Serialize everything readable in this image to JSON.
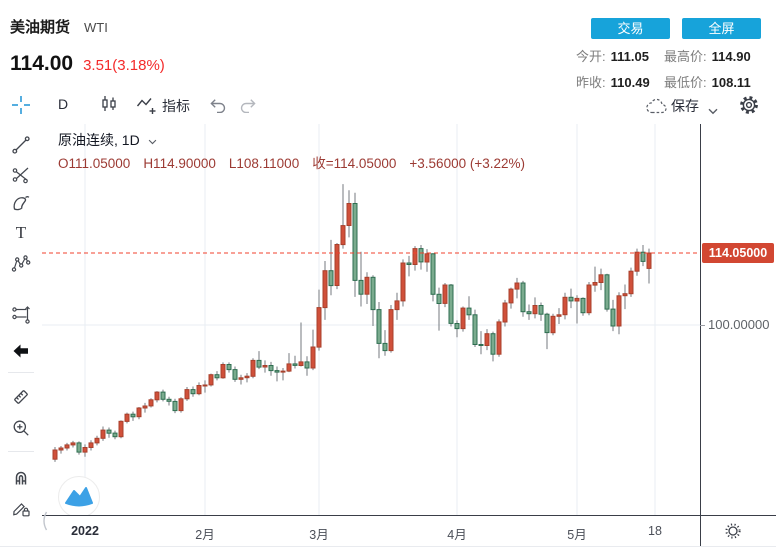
{
  "header": {
    "title": "美油期货",
    "symbol": "WTI",
    "price": "114.00",
    "change": "3.51(3.18%)",
    "buttons": {
      "trade": "交易",
      "fullscreen": "全屏"
    },
    "stats": [
      {
        "label": "今开:",
        "value": "111.05"
      },
      {
        "label": "最高价:",
        "value": "114.90"
      },
      {
        "label": "昨收:",
        "value": "110.49"
      },
      {
        "label": "最低价:",
        "value": "108.11"
      }
    ]
  },
  "toolbar": {
    "interval": "D",
    "indicators_label": "指标",
    "save_label": "保存"
  },
  "sidebar": {
    "tools": [
      "crosshair",
      "trend-line",
      "pitchfork",
      "brush",
      "text",
      "xabcd-pattern",
      "forecast",
      "hide-drawings-arrow",
      "ruler",
      "zoom-in",
      "magnet",
      "lock-drawings"
    ]
  },
  "chart": {
    "legend": {
      "series": "原油连续, 1D",
      "o": "O111.05000",
      "h": "H114.90000",
      "l": "L108.11000",
      "close": "收=114.05000",
      "chg": "+3.56000 (+3.22%)"
    },
    "price_label": "114.05000",
    "y_axis_label": "100.00000"
  },
  "chart_data": {
    "type": "candlestick",
    "title": "原油连续, 1D (WTI 美油期货)",
    "last_bar": {
      "open": 111.05,
      "high": 114.9,
      "low": 108.11,
      "close": 114.05,
      "change": 3.56,
      "change_pct": "+3.22%"
    },
    "price_line": 114.05,
    "y_axis": {
      "visible_labels": [
        114.05,
        100.0
      ],
      "approx_range": [
        73,
        128
      ]
    },
    "x_axis": {
      "labels": [
        "2022",
        "2月",
        "3月",
        "4月",
        "5月",
        "18"
      ],
      "ticks": [
        {
          "label": "2022",
          "index": 5,
          "bold": true
        },
        {
          "label": "2月",
          "index": 25
        },
        {
          "label": "3月",
          "index": 44
        },
        {
          "label": "4月",
          "index": 67
        },
        {
          "label": "5月",
          "index": 87
        },
        {
          "label": "18",
          "index": 100
        }
      ]
    },
    "colors": {
      "up_fill": "#d0503a",
      "up_stroke": "#a8402c",
      "down_fill": "#7aab8e",
      "down_stroke": "#2e6e50",
      "wick": "#75797f",
      "price_line": "#f2402c",
      "grid": "#e9edf3"
    },
    "candles": [
      [
        73.8,
        76.2,
        73.3,
        75.6
      ],
      [
        75.6,
        76.4,
        74.9,
        76.0
      ],
      [
        76.0,
        77.0,
        75.5,
        76.6
      ],
      [
        76.6,
        77.4,
        76.1,
        77.0
      ],
      [
        77.0,
        77.3,
        74.7,
        75.2
      ],
      [
        75.2,
        76.7,
        74.3,
        76.1
      ],
      [
        76.1,
        77.5,
        75.5,
        77.0
      ],
      [
        77.0,
        78.4,
        76.5,
        77.9
      ],
      [
        77.9,
        80.2,
        77.4,
        79.5
      ],
      [
        79.5,
        80.0,
        78.0,
        78.9
      ],
      [
        78.9,
        79.4,
        77.7,
        78.2
      ],
      [
        78.2,
        81.4,
        77.9,
        81.2
      ],
      [
        81.2,
        82.9,
        80.8,
        82.6
      ],
      [
        82.6,
        83.1,
        81.3,
        82.1
      ],
      [
        82.1,
        84.0,
        81.6,
        83.8
      ],
      [
        83.8,
        84.8,
        82.9,
        84.2
      ],
      [
        84.2,
        85.7,
        83.9,
        85.4
      ],
      [
        85.4,
        87.1,
        84.9,
        86.9
      ],
      [
        86.9,
        87.4,
        85.1,
        85.5
      ],
      [
        85.5,
        86.0,
        84.3,
        85.1
      ],
      [
        85.1,
        85.6,
        82.8,
        83.3
      ],
      [
        83.3,
        85.9,
        82.9,
        85.6
      ],
      [
        85.6,
        87.9,
        85.2,
        87.4
      ],
      [
        87.4,
        88.0,
        86.0,
        86.6
      ],
      [
        86.6,
        88.8,
        86.3,
        88.2
      ],
      [
        88.2,
        89.2,
        86.8,
        88.3
      ],
      [
        88.3,
        90.5,
        88.0,
        90.3
      ],
      [
        90.3,
        91.0,
        89.2,
        89.7
      ],
      [
        89.7,
        92.7,
        89.5,
        92.3
      ],
      [
        92.3,
        92.7,
        90.7,
        91.3
      ],
      [
        91.3,
        91.9,
        88.9,
        89.4
      ],
      [
        89.4,
        90.3,
        88.4,
        89.7
      ],
      [
        89.7,
        90.6,
        88.8,
        90.0
      ],
      [
        90.0,
        93.5,
        89.6,
        93.1
      ],
      [
        93.1,
        94.9,
        91.4,
        91.8
      ],
      [
        91.8,
        93.1,
        90.7,
        92.1
      ],
      [
        92.1,
        92.8,
        90.1,
        91.1
      ],
      [
        91.1,
        91.9,
        89.0,
        90.8
      ],
      [
        90.8,
        91.6,
        89.2,
        91.0
      ],
      [
        91.0,
        94.5,
        90.8,
        92.4
      ],
      [
        92.4,
        94.0,
        91.5,
        92.1
      ],
      [
        92.1,
        100.5,
        91.9,
        92.8
      ],
      [
        92.8,
        93.9,
        90.1,
        91.6
      ],
      [
        91.6,
        99.1,
        91.2,
        95.7
      ],
      [
        95.7,
        106.9,
        95.0,
        103.4
      ],
      [
        103.4,
        112.5,
        101.0,
        110.6
      ],
      [
        110.6,
        116.6,
        105.8,
        107.7
      ],
      [
        107.7,
        116.0,
        107.0,
        115.7
      ],
      [
        115.7,
        127.5,
        114.9,
        119.4
      ],
      [
        119.4,
        126.3,
        117.1,
        123.7
      ],
      [
        123.7,
        125.8,
        105.5,
        108.7
      ],
      [
        108.7,
        114.3,
        103.6,
        106.0
      ],
      [
        106.0,
        110.3,
        104.1,
        109.3
      ],
      [
        109.3,
        109.7,
        99.8,
        103.0
      ],
      [
        103.0,
        104.5,
        93.5,
        96.4
      ],
      [
        96.4,
        99.0,
        94.0,
        95.0
      ],
      [
        95.0,
        103.9,
        94.6,
        103.0
      ],
      [
        103.0,
        106.3,
        101.0,
        104.7
      ],
      [
        104.7,
        112.8,
        103.6,
        112.1
      ],
      [
        112.1,
        113.5,
        109.5,
        111.8
      ],
      [
        111.8,
        115.4,
        110.6,
        114.9
      ],
      [
        114.9,
        115.6,
        110.8,
        112.3
      ],
      [
        112.3,
        114.8,
        110.4,
        113.9
      ],
      [
        113.9,
        114.0,
        104.6,
        106.0
      ],
      [
        106.0,
        107.3,
        98.9,
        104.2
      ],
      [
        104.2,
        108.2,
        103.5,
        107.8
      ],
      [
        107.8,
        108.0,
        99.7,
        100.3
      ],
      [
        100.3,
        100.9,
        97.6,
        99.3
      ],
      [
        99.3,
        103.6,
        98.7,
        103.3
      ],
      [
        103.3,
        105.6,
        101.0,
        102.0
      ],
      [
        102.0,
        103.0,
        95.7,
        96.2
      ],
      [
        96.2,
        98.8,
        94.3,
        96.0
      ],
      [
        96.0,
        99.2,
        95.1,
        98.3
      ],
      [
        98.3,
        98.7,
        92.9,
        94.3
      ],
      [
        94.3,
        101.1,
        93.8,
        100.6
      ],
      [
        100.6,
        104.9,
        99.7,
        104.3
      ],
      [
        104.3,
        107.3,
        103.2,
        107.0
      ],
      [
        107.0,
        109.2,
        105.2,
        108.2
      ],
      [
        108.2,
        108.6,
        101.6,
        102.6
      ],
      [
        102.6,
        104.0,
        101.0,
        102.2
      ],
      [
        102.2,
        105.4,
        101.3,
        103.8
      ],
      [
        103.8,
        104.4,
        100.8,
        102.1
      ],
      [
        102.1,
        102.4,
        95.3,
        98.5
      ],
      [
        98.5,
        102.2,
        98.0,
        101.7
      ],
      [
        101.7,
        103.3,
        100.2,
        102.0
      ],
      [
        102.0,
        106.3,
        101.1,
        105.4
      ],
      [
        105.4,
        107.1,
        103.3,
        104.7
      ],
      [
        104.7,
        105.8,
        100.3,
        105.2
      ],
      [
        105.2,
        105.4,
        101.8,
        102.4
      ],
      [
        102.4,
        108.4,
        101.9,
        107.8
      ],
      [
        107.8,
        111.4,
        106.5,
        108.3
      ],
      [
        108.3,
        111.0,
        106.8,
        109.8
      ],
      [
        109.8,
        110.0,
        102.6,
        103.1
      ],
      [
        103.1,
        104.9,
        98.8,
        99.8
      ],
      [
        99.8,
        106.4,
        98.2,
        105.7
      ],
      [
        105.7,
        107.9,
        103.1,
        106.1
      ],
      [
        106.1,
        111.2,
        105.5,
        110.5
      ],
      [
        110.5,
        114.9,
        109.6,
        114.2
      ],
      [
        114.2,
        115.6,
        111.5,
        112.4
      ],
      [
        111.05,
        114.9,
        108.11,
        114.05
      ]
    ]
  }
}
